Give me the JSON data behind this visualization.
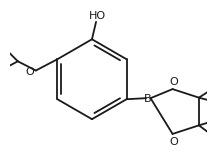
{
  "bg_color": "#ffffff",
  "line_color": "#1a1a1a",
  "line_width": 1.3,
  "font_size": 7.5
}
